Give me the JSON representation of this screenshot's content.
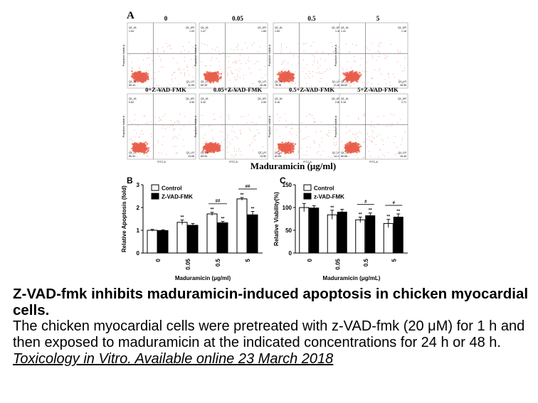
{
  "panel_a": {
    "letter": "A",
    "xlabel": "Maduramicin (μg/ml)",
    "plots": [
      {
        "title": "0",
        "q_ul": "Q1_UL",
        "q_ur": "Q1_UR",
        "v_ul": "1.54",
        "v_ur": "1.03",
        "q_ll": "Q1_LL",
        "q_lr": "Q1_LR",
        "v_ll": "85.43",
        "v_lr": "11.59"
      },
      {
        "title": "0.05",
        "q_ul": "Q1_UL",
        "q_ur": "Q1_UR",
        "v_ul": "1.47",
        "v_ur": "1.65",
        "q_ll": "Q1_LL",
        "q_lr": "Q1_LR",
        "v_ll": "80.39",
        "v_lr": "16.48"
      },
      {
        "title": "0.5",
        "q_ul": "Q1_UL",
        "q_ur": "Q1_UR",
        "v_ul": "1.50",
        "v_ur": "1.46",
        "q_ll": "Q1_LL",
        "q_lr": "Q1_LR",
        "v_ll": "75.18",
        "v_lr": "21.86"
      },
      {
        "title": "5",
        "q_ul": "Q1_UL",
        "q_ur": "Q1_UR",
        "v_ul": "1.41",
        "v_ur": "1.18",
        "q_ll": "Q1_LL",
        "q_lr": "Q1_LR",
        "v_ll": "68.83",
        "v_lr": "28.98"
      },
      {
        "title": "0+Z-VAD-FMK",
        "q_ul": "Q1_UL",
        "q_ur": "Q1_UR",
        "v_ul": "0.62",
        "v_ur": "3.90",
        "q_ll": "Q1_LL",
        "q_lr": "Q1_LR",
        "v_ll": "85.33",
        "v_lr": "10.08"
      },
      {
        "title": "0.05+Z-VAD-FMK",
        "q_ul": "Q1_UL",
        "q_ur": "Q1_UR",
        "v_ul": "0.32",
        "v_ur": "2.59",
        "q_ll": "Q1_LL",
        "q_lr": "Q1_LR",
        "v_ll": "83.94",
        "v_lr": "13.52"
      },
      {
        "title": "0.5+Z-VAD-FMK",
        "q_ul": "Q1_UL",
        "q_ur": "Q1_UR",
        "v_ul": "0.16",
        "v_ur": "2.80",
        "q_ll": "Q1_LL",
        "q_lr": "Q1_LR",
        "v_ll": "82.65",
        "v_lr": "14.17"
      },
      {
        "title": "5+Z-VAD-FMK",
        "q_ul": "Q1_UL",
        "q_ur": "Q1_UR",
        "v_ul": "0.16",
        "v_ur": "2.71",
        "q_ll": "Q1_LL",
        "q_lr": "Q1_LR",
        "v_ll": "80.68",
        "v_lr": "16.45"
      }
    ],
    "axis_x": "FITC-A",
    "axis_y": "Propidium Iodide-A"
  },
  "chart_data": [
    {
      "type": "bar",
      "panel": "B",
      "categories": [
        "0",
        "0.05",
        "0.5",
        "5"
      ],
      "series": [
        {
          "name": "Control",
          "values": [
            1.0,
            1.35,
            1.72,
            2.38
          ],
          "errors": [
            0.04,
            0.1,
            0.07,
            0.06
          ],
          "marks": [
            "",
            "**",
            "**",
            "**"
          ]
        },
        {
          "name": "Z-VAD-FMK",
          "values": [
            0.99,
            1.22,
            1.33,
            1.68
          ],
          "errors": [
            0.03,
            0.08,
            0.06,
            0.15
          ],
          "marks": [
            "",
            "",
            "**",
            "**"
          ]
        }
      ],
      "ylabel": "Relative Apoptosis (fold)",
      "xlabel": "Maduramicin (μg/ml)",
      "ylim": [
        0,
        3
      ],
      "yticks": [
        "0",
        "1",
        "2",
        "3"
      ],
      "brackets": [
        {
          "between": "0.5",
          "label": "##"
        },
        {
          "between": "5",
          "label": "##"
        }
      ],
      "legend": "top-left"
    },
    {
      "type": "bar",
      "panel": "C",
      "categories": [
        "0",
        "0.05",
        "0.5",
        "5"
      ],
      "series": [
        {
          "name": "Control",
          "values": [
            100,
            84,
            73,
            65
          ],
          "errors": [
            9,
            10,
            6,
            9
          ],
          "marks": [
            "",
            "**",
            "**",
            "**"
          ]
        },
        {
          "name": "z-VAD-FMK",
          "values": [
            99,
            90,
            82,
            79
          ],
          "errors": [
            5,
            6,
            6,
            7
          ],
          "marks": [
            "",
            "",
            "**",
            "**"
          ]
        }
      ],
      "ylabel": "Relative Viability(%)",
      "xlabel": "Maduramicin (μg/mL)",
      "ylim": [
        0,
        150
      ],
      "yticks": [
        "0",
        "50",
        "100",
        "150"
      ],
      "brackets": [
        {
          "between": "0.5",
          "label": "#"
        },
        {
          "between": "5",
          "label": "#"
        }
      ],
      "legend": "top-left"
    }
  ],
  "caption": {
    "title": "Z-VAD-fmk inhibits maduramicin-induced apoptosis in chicken myocardial cells.",
    "body": "The chicken myocardial cells were pretreated with z-VAD-fmk (20 μM) for 1 h and then exposed to maduramicin at the indicated concentrations for 24 h or 48 h. ",
    "citation": "Toxicology in Vitro. Available online 23 March 2018"
  },
  "colors": {
    "dots": "#e8604c",
    "quadrant": "#777777",
    "control_fill": "#ffffff",
    "zvad_fill": "#000000"
  }
}
